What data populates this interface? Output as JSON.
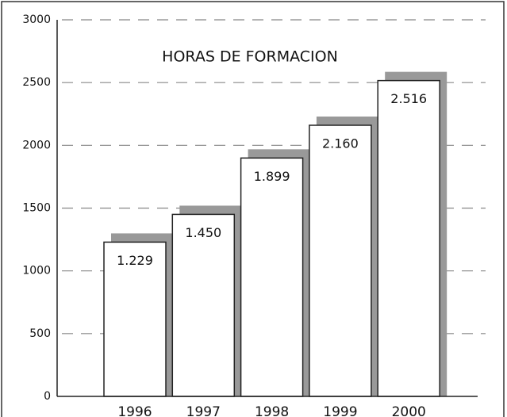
{
  "chart_data": {
    "type": "bar",
    "title": "HORAS DE FORMACION",
    "categories": [
      "1996",
      "1997",
      "1998",
      "1999",
      "2000"
    ],
    "values": [
      1229,
      1450,
      1899,
      2160,
      2516
    ],
    "value_labels": [
      "1.229",
      "1.450",
      "1.899",
      "2.160",
      "2.516"
    ],
    "color": "#ffffff",
    "shadow_color": "#999999",
    "ylim": [
      0,
      3000
    ],
    "yticks": [
      0,
      500,
      1000,
      1500,
      2000,
      2500,
      3000
    ],
    "grid": true
  }
}
